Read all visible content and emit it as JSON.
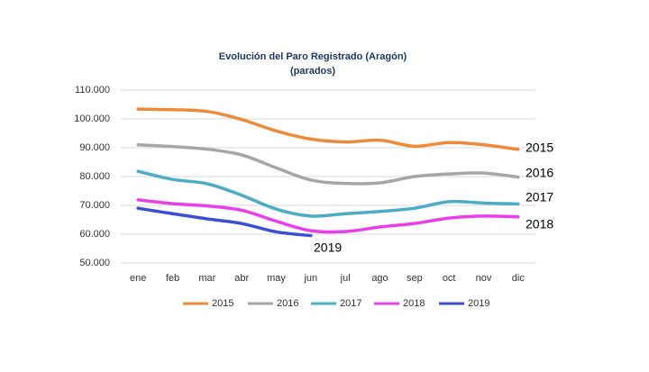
{
  "chart_data": {
    "type": "line",
    "title": "Evolución del Paro Registrado (Aragón)",
    "subtitle": "(parados)",
    "categories": [
      "ene",
      "feb",
      "mar",
      "abr",
      "may",
      "jun",
      "jul",
      "ago",
      "sep",
      "oct",
      "nov",
      "dic"
    ],
    "ylim": [
      50000,
      110000
    ],
    "yticks": [
      {
        "value": 50000,
        "label": "50.000"
      },
      {
        "value": 60000,
        "label": "60.000"
      },
      {
        "value": 70000,
        "label": "70.000"
      },
      {
        "value": 80000,
        "label": "80.000"
      },
      {
        "value": 90000,
        "label": "90.000"
      },
      {
        "value": 100000,
        "label": "100.000"
      },
      {
        "value": 110000,
        "label": "110.000"
      }
    ],
    "grid": true,
    "legend": "bottom",
    "series": [
      {
        "name": "2015",
        "color": "#ed8b3a",
        "values": [
          103400,
          103200,
          102600,
          99800,
          95800,
          93000,
          92000,
          92600,
          90500,
          91800,
          91000,
          89400
        ]
      },
      {
        "name": "2016",
        "color": "#a6a6a6",
        "values": [
          91000,
          90400,
          89500,
          87500,
          83000,
          78800,
          77600,
          77800,
          80000,
          80900,
          81200,
          79800
        ]
      },
      {
        "name": "2017",
        "color": "#4bacc6",
        "values": [
          81800,
          79000,
          77500,
          73500,
          68700,
          66300,
          67100,
          67900,
          69000,
          71300,
          70800,
          70500
        ]
      },
      {
        "name": "2018",
        "color": "#e83fe8",
        "values": [
          71900,
          70600,
          69800,
          68300,
          64500,
          61200,
          60900,
          62500,
          63700,
          65600,
          66300,
          66000
        ]
      },
      {
        "name": "2019",
        "color": "#3a4fd6",
        "values": [
          69000,
          67100,
          65300,
          63700,
          60800,
          59500,
          null,
          null,
          null,
          null,
          null,
          null
        ]
      }
    ]
  }
}
